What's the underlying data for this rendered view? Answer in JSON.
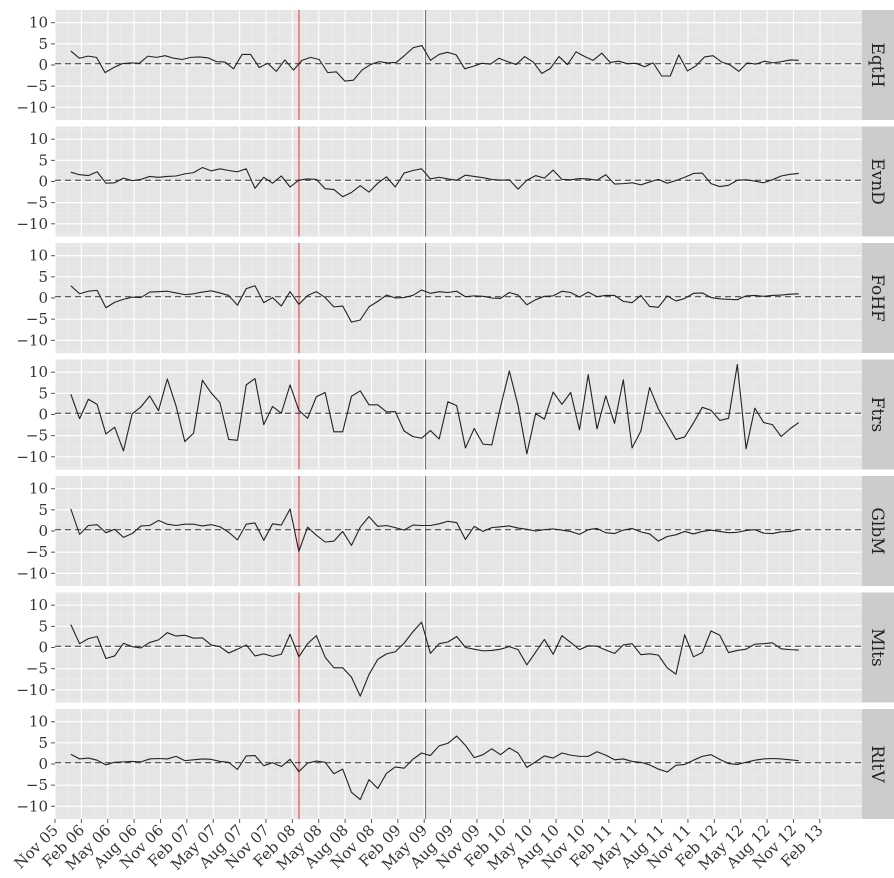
{
  "chart_data": {
    "type": "line",
    "title": "",
    "xlabel": "",
    "ylabel": "",
    "ylim": [
      -13,
      13
    ],
    "yticks": [
      10,
      5,
      0,
      -5,
      -10
    ],
    "ytick_labels": [
      "10",
      "5",
      "0",
      "−5",
      "−10"
    ],
    "xlim": [
      0,
      30.6
    ],
    "xticks": [
      "Nov 05",
      "Feb 06",
      "May 06",
      "Aug 06",
      "Nov 06",
      "Feb 07",
      "May 07",
      "Aug 07",
      "Nov 07",
      "Feb 08",
      "May 08",
      "Aug 08",
      "Nov 08",
      "Feb 09",
      "May 09",
      "Aug 09",
      "Nov 09",
      "Feb 10",
      "May 10",
      "Aug 10",
      "Nov 10",
      "Feb 11",
      "May 11",
      "Aug 11",
      "Nov 11",
      "Feb 12",
      "May 12",
      "Aug 12",
      "Nov 12",
      "Feb 13"
    ],
    "vertical_lines": [
      {
        "label": "Feb 08",
        "offset": 0.25,
        "color": "#e0454a"
      },
      {
        "label": "May 09",
        "offset": 0.05,
        "color": "#e0454a"
      }
    ],
    "reference_line": {
      "value": 0.3,
      "style": "dashed"
    },
    "grid": true,
    "series": [
      {
        "name": "EqtH",
        "start_offset": 0.6,
        "values": [
          3.3,
          1.6,
          2.1,
          1.8,
          -1.8,
          -0.6,
          0.3,
          0.5,
          0.4,
          2.1,
          1.8,
          2.2,
          1.6,
          1.3,
          1.8,
          1.9,
          1.7,
          0.8,
          0.7,
          -0.9,
          2.5,
          2.5,
          -0.6,
          0.4,
          -1.5,
          1.2,
          -1.2,
          1.1,
          1.8,
          1.3,
          -1.8,
          -1.6,
          -3.8,
          -3.6,
          -1.2,
          0.1,
          0.8,
          0.5,
          0.6,
          2.3,
          4.1,
          4.6,
          1.1,
          2.5,
          3.0,
          2.4,
          -0.9,
          -0.3,
          0.4,
          0.2,
          1.6,
          0.8,
          0.1,
          2.0,
          0.7,
          -2.0,
          -0.8,
          2.0,
          0.1,
          3.1,
          2.0,
          1.1,
          2.8,
          0.6,
          0.9,
          0.3,
          0.4,
          -0.4,
          0.5,
          -2.6,
          -2.6,
          2.4,
          -1.4,
          -0.2,
          1.9,
          2.2,
          0.7,
          0.0,
          -1.5,
          0.5,
          0.2,
          0.9,
          0.5,
          0.8,
          1.2,
          1.1
        ]
      },
      {
        "name": "EvnD",
        "start_offset": 0.6,
        "values": [
          2.2,
          1.6,
          1.4,
          2.3,
          -0.4,
          -0.3,
          0.8,
          0.2,
          0.5,
          1.2,
          1.0,
          1.2,
          1.3,
          1.8,
          2.1,
          3.3,
          2.5,
          3.0,
          2.6,
          2.3,
          3.0,
          -1.6,
          1.0,
          -0.4,
          1.3,
          -1.3,
          0.3,
          0.6,
          0.5,
          -1.7,
          -1.9,
          -3.6,
          -2.6,
          -1.0,
          -2.5,
          -0.4,
          1.1,
          -1.3,
          2.0,
          2.6,
          3.0,
          0.6,
          1.0,
          0.6,
          0.3,
          1.5,
          1.2,
          0.9,
          0.5,
          0.3,
          0.4,
          -1.8,
          0.3,
          1.4,
          0.8,
          2.7,
          0.5,
          0.4,
          0.7,
          0.6,
          0.3,
          1.6,
          -0.6,
          -0.5,
          -0.3,
          -0.8,
          -0.1,
          0.5,
          -0.4,
          0.2,
          1.0,
          1.9,
          2.0,
          -0.5,
          -1.2,
          -0.9,
          0.3,
          0.4,
          0.1,
          -0.3,
          0.4,
          1.3,
          1.7,
          1.9
        ]
      },
      {
        "name": "FoHF",
        "start_offset": 0.6,
        "values": [
          2.9,
          1.0,
          1.6,
          1.8,
          -2.3,
          -1.0,
          -0.3,
          0.2,
          0.1,
          1.4,
          1.5,
          1.6,
          1.2,
          0.8,
          1.0,
          1.4,
          1.7,
          1.2,
          0.6,
          -1.7,
          2.2,
          2.9,
          -1.1,
          0.1,
          -1.9,
          1.5,
          -1.5,
          0.6,
          1.5,
          0.1,
          -2.1,
          -1.9,
          -5.7,
          -5.2,
          -2.1,
          -0.8,
          0.7,
          0.0,
          0.1,
          0.6,
          1.9,
          1.1,
          1.5,
          1.3,
          1.6,
          0.3,
          0.5,
          0.4,
          0.0,
          -0.1,
          1.3,
          0.7,
          -1.6,
          -0.4,
          0.4,
          0.5,
          1.6,
          1.3,
          0.2,
          1.4,
          0.3,
          0.6,
          0.6,
          -0.8,
          -1.1,
          0.6,
          -2.0,
          -2.2,
          0.5,
          -0.7,
          -0.1,
          1.1,
          1.2,
          0.1,
          -0.2,
          -0.3,
          -0.4,
          0.5,
          0.6,
          0.4,
          0.6,
          0.7,
          0.9,
          1.0
        ]
      },
      {
        "name": "Ftrs",
        "start_offset": 0.6,
        "values": [
          4.8,
          -1.0,
          3.6,
          2.4,
          -4.6,
          -3.0,
          -8.6,
          0.2,
          1.8,
          4.4,
          0.9,
          8.4,
          2.0,
          -6.4,
          -4.4,
          8.1,
          5.1,
          2.8,
          -5.9,
          -6.1,
          7.0,
          8.5,
          -2.4,
          1.9,
          0.3,
          7.0,
          1.0,
          -0.9,
          4.2,
          5.2,
          -4.1,
          -4.1,
          4.3,
          5.6,
          2.3,
          2.3,
          0.6,
          0.7,
          -3.9,
          -5.2,
          -5.6,
          -3.8,
          -5.8,
          3.0,
          2.1,
          -7.9,
          -3.3,
          -7.0,
          -7.2,
          1.8,
          10.3,
          2.1,
          -9.3,
          0.2,
          -1.1,
          5.3,
          2.4,
          5.2,
          -3.6,
          9.4,
          -3.4,
          4.4,
          -2.1,
          8.2,
          -7.9,
          -3.9,
          6.4,
          1.3,
          -2.3,
          -5.9,
          -5.3,
          -2.0,
          1.7,
          1.0,
          -1.4,
          -0.9,
          11.8,
          -8.1,
          1.5,
          -1.9,
          -2.4,
          -5.2,
          -3.4,
          -1.9
        ]
      },
      {
        "name": "GlbM",
        "start_offset": 0.6,
        "values": [
          5.2,
          -0.8,
          1.3,
          1.5,
          -0.4,
          0.4,
          -1.5,
          -0.6,
          1.2,
          1.3,
          2.5,
          1.6,
          1.3,
          1.6,
          1.6,
          1.2,
          1.5,
          1.0,
          -0.3,
          -2.1,
          1.6,
          1.9,
          -2.2,
          1.7,
          1.4,
          5.2,
          -4.8,
          0.9,
          -1.0,
          -2.6,
          -2.4,
          -0.1,
          -3.4,
          0.9,
          3.4,
          1.1,
          1.3,
          0.8,
          0.2,
          1.4,
          1.3,
          1.3,
          1.7,
          2.3,
          2.0,
          -2.0,
          1.1,
          -0.1,
          0.8,
          1.0,
          1.2,
          0.7,
          0.4,
          0.0,
          0.3,
          0.5,
          0.2,
          -0.1,
          -0.8,
          0.3,
          0.6,
          -0.4,
          -0.6,
          0.2,
          0.6,
          -0.2,
          -0.7,
          -2.4,
          -1.3,
          -0.9,
          -0.1,
          -0.7,
          -0.1,
          0.2,
          -0.1,
          -0.4,
          -0.3,
          0.1,
          0.3,
          -0.5,
          -0.6,
          -0.2,
          -0.1,
          0.4
        ]
      },
      {
        "name": "Mlts",
        "start_offset": 0.6,
        "values": [
          5.4,
          0.9,
          2.1,
          2.6,
          -2.6,
          -2.0,
          1.0,
          0.2,
          -0.1,
          1.2,
          1.8,
          3.5,
          2.7,
          2.9,
          2.2,
          2.3,
          0.6,
          0.2,
          -1.3,
          -0.4,
          0.6,
          -2.0,
          -1.5,
          -2.1,
          -1.6,
          3.1,
          -2.2,
          0.9,
          2.8,
          -2.3,
          -4.8,
          -4.8,
          -7.0,
          -11.5,
          -6.4,
          -2.8,
          -1.5,
          -1.0,
          1.0,
          3.7,
          6.0,
          -1.4,
          0.9,
          1.3,
          2.6,
          0.0,
          -0.4,
          -0.8,
          -0.7,
          -0.4,
          0.2,
          -0.5,
          -4.1,
          -1.1,
          1.9,
          -1.6,
          2.8,
          1.2,
          -0.5,
          0.4,
          0.3,
          -0.6,
          -1.4,
          0.6,
          0.9,
          -1.7,
          -1.5,
          -1.8,
          -4.8,
          -6.3,
          3.0,
          -2.2,
          -1.2,
          3.9,
          2.9,
          -1.2,
          -0.7,
          -0.4,
          0.8,
          0.9,
          1.1,
          -0.3,
          -0.5,
          -0.6
        ]
      },
      {
        "name": "RltV",
        "start_offset": 0.6,
        "values": [
          2.3,
          1.2,
          1.4,
          0.9,
          -0.2,
          0.4,
          0.5,
          0.6,
          0.5,
          1.2,
          1.3,
          1.2,
          1.8,
          0.8,
          1.0,
          1.2,
          1.1,
          0.6,
          0.4,
          -1.3,
          1.9,
          2.0,
          -0.4,
          0.3,
          -0.6,
          1.1,
          -1.8,
          0.2,
          0.7,
          0.4,
          -2.3,
          -1.2,
          -6.7,
          -8.4,
          -3.7,
          -5.8,
          -2.2,
          -0.7,
          -1.0,
          1.1,
          2.6,
          2.0,
          4.3,
          4.9,
          6.6,
          4.4,
          1.5,
          2.2,
          3.6,
          2.2,
          3.8,
          2.6,
          -0.8,
          0.5,
          1.9,
          1.4,
          2.6,
          2.1,
          1.8,
          1.8,
          2.9,
          2.1,
          1.0,
          1.2,
          0.6,
          0.4,
          -0.2,
          -1.2,
          -1.9,
          -0.3,
          -0.1,
          0.9,
          1.8,
          2.2,
          1.1,
          0.1,
          -0.1,
          0.4,
          0.9,
          1.2,
          1.3,
          1.2,
          1.0,
          0.8
        ]
      }
    ]
  }
}
